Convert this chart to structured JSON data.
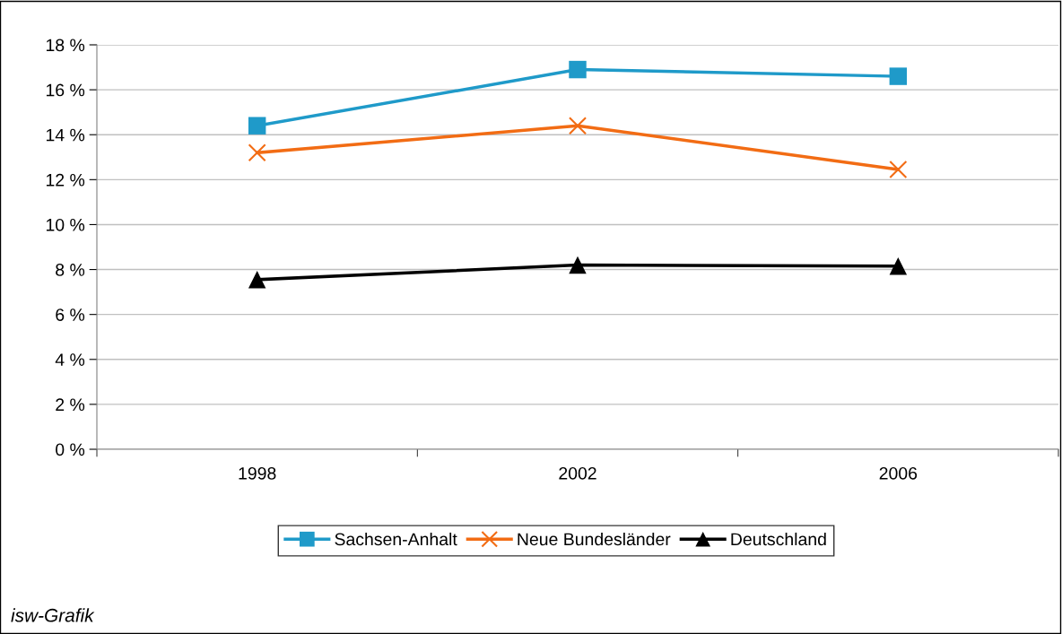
{
  "chart_data": {
    "type": "line",
    "categories": [
      "1998",
      "2002",
      "2006"
    ],
    "series": [
      {
        "name": "Sachsen-Anhalt",
        "color": "#1f9ac9",
        "marker": "square",
        "values": [
          14.4,
          16.9,
          16.6
        ]
      },
      {
        "name": "Neue Bundesländer",
        "color": "#f26c14",
        "marker": "cross",
        "values": [
          13.2,
          14.4,
          12.45
        ]
      },
      {
        "name": "Deutschland",
        "color": "#000000",
        "marker": "triangle",
        "values": [
          7.55,
          8.2,
          8.15
        ]
      }
    ],
    "ylim": [
      0,
      18
    ],
    "yticks": [
      {
        "value": 0,
        "label": "0 %"
      },
      {
        "value": 2,
        "label": "2 %"
      },
      {
        "value": 4,
        "label": "4 %"
      },
      {
        "value": 6,
        "label": "6 %"
      },
      {
        "value": 8,
        "label": "8 %"
      },
      {
        "value": 10,
        "label": "10 %"
      },
      {
        "value": 12,
        "label": "12 %"
      },
      {
        "value": 14,
        "label": "14 %"
      },
      {
        "value": 16,
        "label": "16 %"
      },
      {
        "value": 18,
        "label": "18 %"
      }
    ],
    "grid": "y",
    "legend": "bottom",
    "line_style": "solid",
    "annotations": [
      "isw-Grafik"
    ]
  }
}
